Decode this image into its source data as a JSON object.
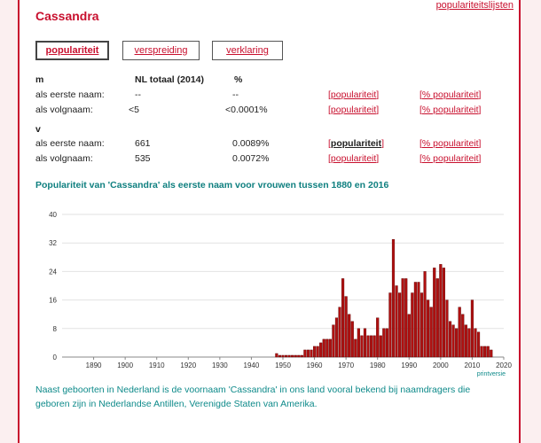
{
  "header": {
    "top_link": "populariteitslijsten",
    "title": "Cassandra"
  },
  "tabs": [
    {
      "label": "populariteit",
      "active": true
    },
    {
      "label": "verspreiding",
      "active": false
    },
    {
      "label": "verklaring",
      "active": false
    }
  ],
  "table": {
    "col_headers": {
      "total": "NL totaal (2014)",
      "pct": "%"
    },
    "groups": [
      {
        "sex": "m",
        "rows": [
          {
            "label": "als eerste naam:",
            "total": "--",
            "pct": "--",
            "link1": "populariteit",
            "link2": "% populariteit",
            "link1_bold": false
          },
          {
            "label": "als volgnaam:",
            "total": "<5",
            "pct": "<0.0001%",
            "link1": "populariteit",
            "link2": "% populariteit",
            "link1_bold": false
          }
        ]
      },
      {
        "sex": "v",
        "rows": [
          {
            "label": "als eerste naam:",
            "total": "661",
            "pct": "0.0089%",
            "link1": "populariteit",
            "link2": "% populariteit",
            "link1_bold": true
          },
          {
            "label": "als volgnaam:",
            "total": "535",
            "pct": "0.0072%",
            "link1": "populariteit",
            "link2": "% populariteit",
            "link1_bold": false
          }
        ]
      }
    ]
  },
  "chart_title": "Populariteit van 'Cassandra' als eerste naam voor vrouwen tussen 1880 en 2016",
  "chart_data": {
    "type": "bar",
    "xlim": [
      1880,
      2020
    ],
    "ylim": [
      0,
      40
    ],
    "yticks": [
      0,
      8,
      16,
      24,
      32,
      40
    ],
    "xticks": [
      1890,
      1900,
      1910,
      1920,
      1930,
      1940,
      1950,
      1960,
      1970,
      1980,
      1990,
      2000,
      2010,
      2020
    ],
    "grid": true,
    "color": "#b01010",
    "x": [
      1948,
      1949,
      1950,
      1951,
      1952,
      1953,
      1954,
      1955,
      1956,
      1957,
      1958,
      1959,
      1960,
      1961,
      1962,
      1963,
      1964,
      1965,
      1966,
      1967,
      1968,
      1969,
      1970,
      1971,
      1972,
      1973,
      1974,
      1975,
      1976,
      1977,
      1978,
      1979,
      1980,
      1981,
      1982,
      1983,
      1984,
      1985,
      1986,
      1987,
      1988,
      1989,
      1990,
      1991,
      1992,
      1993,
      1994,
      1995,
      1996,
      1997,
      1998,
      1999,
      2000,
      2001,
      2002,
      2003,
      2004,
      2005,
      2006,
      2007,
      2008,
      2009,
      2010,
      2011,
      2012,
      2013,
      2014,
      2015,
      2016
    ],
    "values": [
      1,
      0.5,
      0.5,
      0.5,
      0.5,
      0.5,
      0.5,
      0.5,
      0.5,
      2,
      2,
      2,
      3,
      3,
      4,
      5,
      5,
      5,
      9,
      11,
      14,
      22,
      17,
      12,
      10,
      5,
      8,
      6,
      8,
      6,
      6,
      6,
      11,
      6,
      8,
      8,
      18,
      33,
      20,
      18,
      22,
      22,
      12,
      18,
      21,
      21,
      18,
      24,
      16,
      14,
      25,
      22,
      26,
      25,
      16,
      10,
      9,
      8,
      14,
      12,
      9,
      8,
      16,
      8,
      7,
      3,
      3,
      3,
      2
    ],
    "footer_link": "printversie"
  },
  "footnote": "Naast geboorten in Nederland is de voornaam 'Cassandra' in ons land vooral bekend bij naamdragers die geboren zijn in Nederlandse Antillen, Verenigde Staten van Amerika."
}
